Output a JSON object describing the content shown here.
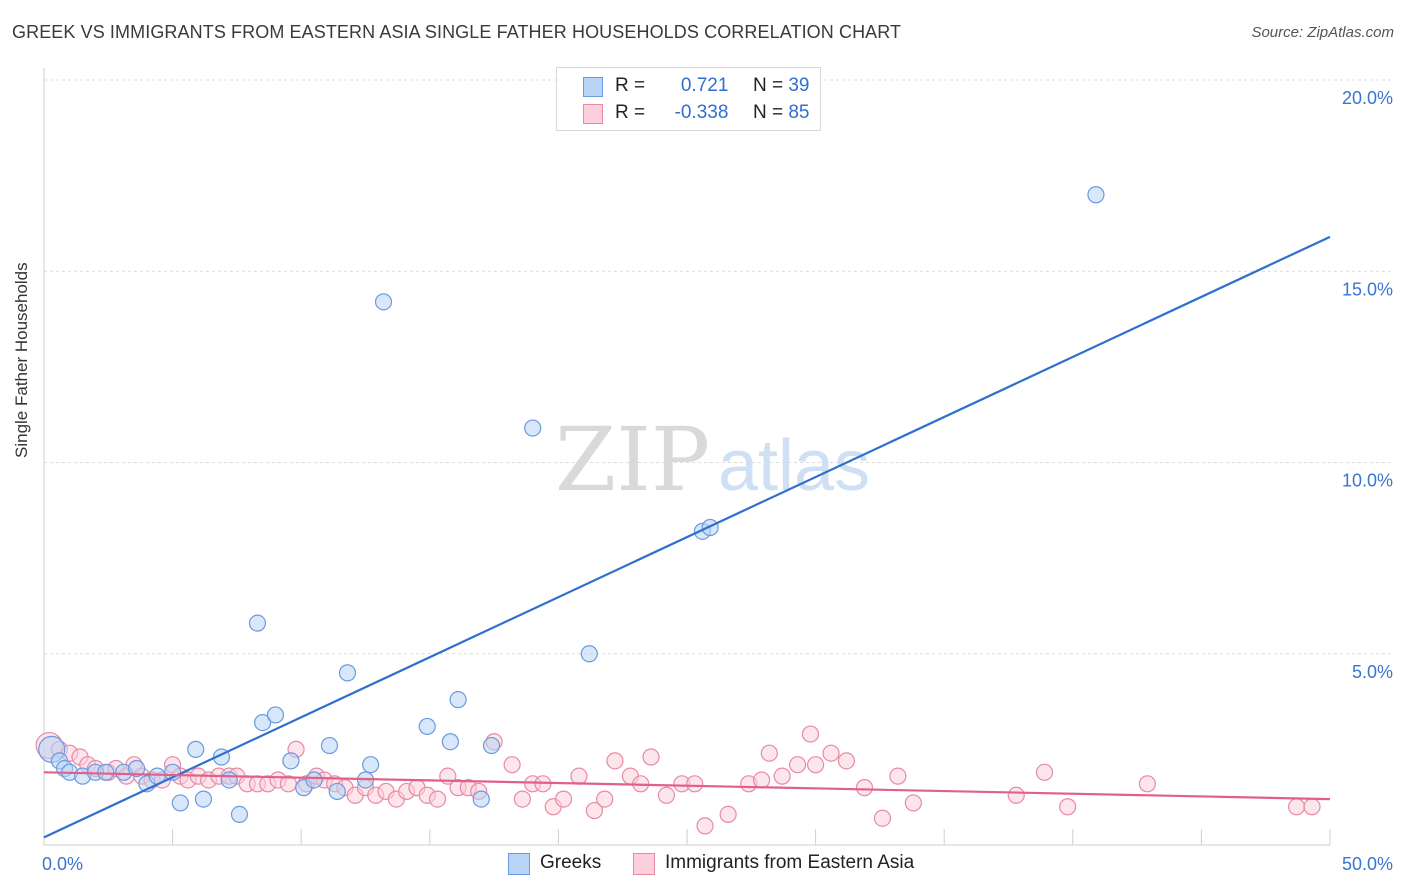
{
  "title": "GREEK VS IMMIGRANTS FROM EASTERN ASIA SINGLE FATHER HOUSEHOLDS CORRELATION CHART",
  "source": "Source: ZipAtlas.com",
  "watermark": {
    "zip": "ZIP",
    "atlas": "atlas"
  },
  "legend": {
    "rows": [
      {
        "r_label": "R =",
        "r_value": "0.721",
        "n_label": "N =",
        "n_value": "39",
        "color": "#a9c8f0",
        "border": "#6a9ae0"
      },
      {
        "r_label": "R =",
        "r_value": "-0.338",
        "n_label": "N =",
        "n_value": "85",
        "color": "#f8c4d2",
        "border": "#e88aa6"
      }
    ]
  },
  "bottom_legend": [
    {
      "label": "Greeks",
      "color": "#b8d3f4",
      "border": "#6a9ae0"
    },
    {
      "label": "Immigrants from Eastern Asia",
      "color": "#fbd0dc",
      "border": "#e88aa6"
    }
  ],
  "chart_data": {
    "type": "scatter",
    "title": "GREEK VS IMMIGRANTS FROM EASTERN ASIA SINGLE FATHER HOUSEHOLDS CORRELATION CHART",
    "xlabel": "",
    "ylabel": "Single Father Households",
    "xlim": [
      0,
      50
    ],
    "ylim": [
      0,
      20
    ],
    "x_ticks": [
      {
        "value": 0,
        "label": "0.0%"
      },
      {
        "value": 50,
        "label": "50.0%"
      }
    ],
    "y_ticks": [
      {
        "value": 5,
        "label": "5.0%"
      },
      {
        "value": 10,
        "label": "10.0%"
      },
      {
        "value": 15,
        "label": "15.0%"
      },
      {
        "value": 20,
        "label": "20.0%"
      }
    ],
    "grid": true,
    "legend_position": "top-center",
    "series": [
      {
        "name": "Greeks",
        "color": "#6a9ae0",
        "fill": "#b8d3f4",
        "trend_color": "#2e6fcf",
        "trend": {
          "x": [
            0,
            50
          ],
          "y": [
            0.2,
            15.9
          ]
        },
        "points": [
          [
            0.3,
            2.5
          ],
          [
            0.6,
            2.2
          ],
          [
            0.8,
            2.0
          ],
          [
            1.0,
            1.9
          ],
          [
            1.5,
            1.8
          ],
          [
            2.0,
            1.9
          ],
          [
            2.4,
            1.9
          ],
          [
            3.1,
            1.9
          ],
          [
            3.6,
            2.0
          ],
          [
            4.0,
            1.6
          ],
          [
            4.4,
            1.8
          ],
          [
            5.0,
            1.9
          ],
          [
            5.3,
            1.1
          ],
          [
            5.9,
            2.5
          ],
          [
            6.2,
            1.2
          ],
          [
            6.9,
            2.3
          ],
          [
            7.2,
            1.7
          ],
          [
            7.6,
            0.8
          ],
          [
            8.3,
            5.8
          ],
          [
            8.5,
            3.2
          ],
          [
            9.0,
            3.4
          ],
          [
            9.6,
            2.2
          ],
          [
            10.1,
            1.5
          ],
          [
            10.5,
            1.7
          ],
          [
            11.1,
            2.6
          ],
          [
            11.4,
            1.4
          ],
          [
            11.8,
            4.5
          ],
          [
            12.5,
            1.7
          ],
          [
            12.7,
            2.1
          ],
          [
            13.2,
            14.2
          ],
          [
            14.9,
            3.1
          ],
          [
            15.8,
            2.7
          ],
          [
            16.1,
            3.8
          ],
          [
            17.0,
            1.2
          ],
          [
            17.4,
            2.6
          ],
          [
            19.0,
            10.9
          ],
          [
            21.2,
            5.0
          ],
          [
            25.6,
            8.2
          ],
          [
            25.9,
            8.3
          ],
          [
            40.9,
            17.0
          ]
        ]
      },
      {
        "name": "Immigrants from Eastern Asia",
        "color": "#e88aa6",
        "fill": "#fbd0dc",
        "trend_color": "#e0608a",
        "trend": {
          "x": [
            0,
            50
          ],
          "y": [
            1.9,
            1.2
          ]
        },
        "points": [
          [
            0.2,
            2.6
          ],
          [
            0.6,
            2.5
          ],
          [
            1.0,
            2.4
          ],
          [
            1.4,
            2.3
          ],
          [
            1.7,
            2.1
          ],
          [
            2.0,
            2.0
          ],
          [
            2.5,
            1.9
          ],
          [
            2.8,
            2.0
          ],
          [
            3.2,
            1.8
          ],
          [
            3.5,
            2.1
          ],
          [
            3.8,
            1.8
          ],
          [
            4.2,
            1.7
          ],
          [
            4.6,
            1.7
          ],
          [
            5.0,
            2.1
          ],
          [
            5.3,
            1.8
          ],
          [
            5.6,
            1.7
          ],
          [
            6.0,
            1.8
          ],
          [
            6.4,
            1.7
          ],
          [
            6.8,
            1.8
          ],
          [
            7.2,
            1.8
          ],
          [
            7.5,
            1.8
          ],
          [
            7.9,
            1.6
          ],
          [
            8.3,
            1.6
          ],
          [
            8.7,
            1.6
          ],
          [
            9.1,
            1.7
          ],
          [
            9.5,
            1.6
          ],
          [
            9.8,
            2.5
          ],
          [
            10.2,
            1.6
          ],
          [
            10.6,
            1.8
          ],
          [
            10.9,
            1.7
          ],
          [
            11.3,
            1.6
          ],
          [
            11.7,
            1.5
          ],
          [
            12.1,
            1.3
          ],
          [
            12.5,
            1.5
          ],
          [
            12.9,
            1.3
          ],
          [
            13.3,
            1.4
          ],
          [
            13.7,
            1.2
          ],
          [
            14.1,
            1.4
          ],
          [
            14.5,
            1.5
          ],
          [
            14.9,
            1.3
          ],
          [
            15.3,
            1.2
          ],
          [
            15.7,
            1.8
          ],
          [
            16.1,
            1.5
          ],
          [
            16.5,
            1.5
          ],
          [
            16.9,
            1.4
          ],
          [
            17.5,
            2.7
          ],
          [
            18.2,
            2.1
          ],
          [
            18.6,
            1.2
          ],
          [
            19.0,
            1.6
          ],
          [
            19.4,
            1.6
          ],
          [
            19.8,
            1.0
          ],
          [
            20.2,
            1.2
          ],
          [
            20.8,
            1.8
          ],
          [
            21.4,
            0.9
          ],
          [
            21.8,
            1.2
          ],
          [
            22.2,
            2.2
          ],
          [
            22.8,
            1.8
          ],
          [
            23.2,
            1.6
          ],
          [
            23.6,
            2.3
          ],
          [
            24.2,
            1.3
          ],
          [
            24.8,
            1.6
          ],
          [
            25.3,
            1.6
          ],
          [
            25.7,
            0.5
          ],
          [
            26.6,
            0.8
          ],
          [
            27.4,
            1.6
          ],
          [
            27.9,
            1.7
          ],
          [
            28.2,
            2.4
          ],
          [
            28.7,
            1.8
          ],
          [
            29.3,
            2.1
          ],
          [
            29.8,
            2.9
          ],
          [
            30.0,
            2.1
          ],
          [
            30.6,
            2.4
          ],
          [
            31.2,
            2.2
          ],
          [
            31.9,
            1.5
          ],
          [
            32.6,
            0.7
          ],
          [
            33.2,
            1.8
          ],
          [
            33.8,
            1.1
          ],
          [
            37.8,
            1.3
          ],
          [
            38.9,
            1.9
          ],
          [
            39.8,
            1.0
          ],
          [
            42.9,
            1.6
          ],
          [
            48.7,
            1.0
          ],
          [
            49.3,
            1.0
          ]
        ]
      }
    ]
  }
}
